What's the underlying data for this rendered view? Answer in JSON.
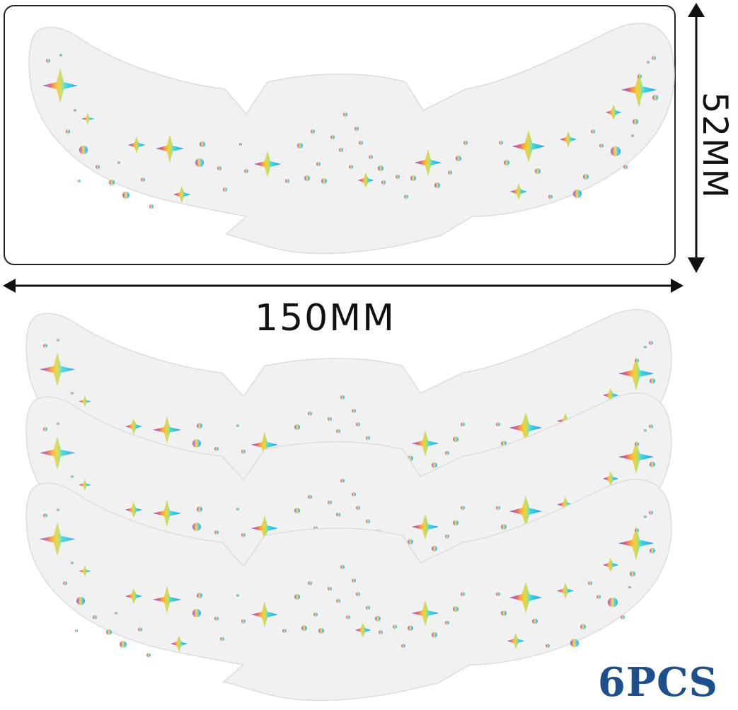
{
  "dimensions": {
    "width_label": "150MM",
    "height_label": "52MM"
  },
  "product": {
    "count_label": "6PCS",
    "colors": {
      "sticker_fill": "#f2f2f2",
      "sticker_edge": "#d9d9d9",
      "gradient": [
        "#3a5bbf",
        "#e05a8a",
        "#f08a3c",
        "#f5d22a",
        "#8fe08a",
        "#34d6e8",
        "#2f8fe8"
      ],
      "count_text": "#1c4f8c"
    }
  }
}
